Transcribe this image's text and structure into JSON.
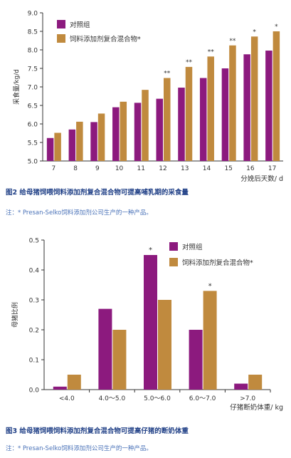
{
  "chart_data": [
    {
      "type": "bar",
      "title": "图2 给母猪饲喂饲料添加剂复合混合物可提高哺乳期的采食量",
      "note": "注：* Presan-Selko饲料添加剂公司生产的一种产品。",
      "ylabel": "采食量/kg/d",
      "xlabel": "分娩后天数/ d",
      "ylim": [
        5.0,
        9.0
      ],
      "yticks": [
        "5.0",
        "5.5",
        "6.0",
        "6.5",
        "7.0",
        "7.5",
        "8.0",
        "8.5",
        "9.0"
      ],
      "categories": [
        "7",
        "8",
        "9",
        "10",
        "11",
        "12",
        "13",
        "14",
        "15",
        "16",
        "17"
      ],
      "series": [
        {
          "name": "对照组",
          "color": "#8c1a7e",
          "values": [
            5.62,
            5.85,
            6.05,
            6.45,
            6.57,
            6.68,
            6.98,
            7.24,
            7.5,
            7.88,
            7.98
          ]
        },
        {
          "name": "饲料添加剂复合混合物*",
          "color": "#c08a3e",
          "values": [
            5.76,
            6.06,
            6.28,
            6.6,
            6.92,
            7.24,
            7.54,
            7.82,
            8.12,
            8.36,
            8.5
          ]
        }
      ],
      "annotations": [
        "",
        "",
        "",
        "",
        "",
        "**",
        "**",
        "**",
        "**",
        "*",
        "*"
      ],
      "legend_position": "top-left",
      "grid": false
    },
    {
      "type": "bar",
      "title": "图3 给母猪饲喂饲料添加剂复合混合物可提高仔猪的断奶体重",
      "note": "注：* Presan-Selko饲料添加剂公司生产的一种产品。",
      "ylabel": "母猪比例",
      "xlabel": "仔猪断奶体重/ kg",
      "ylim": [
        0,
        0.5
      ],
      "yticks": [
        "0.0",
        "0.1",
        "0.2",
        "0.3",
        "0.4",
        "0.5"
      ],
      "categories": [
        "<4.0",
        "4.0～5.0",
        "5.0～6.0",
        "6.0～7.0",
        ">7.0"
      ],
      "series": [
        {
          "name": "对照组",
          "color": "#8c1a7e",
          "values": [
            0.01,
            0.27,
            0.45,
            0.2,
            0.02
          ]
        },
        {
          "name": "饲料添加剂复合混合物*",
          "color": "#c08a3e",
          "values": [
            0.05,
            0.2,
            0.3,
            0.33,
            0.05
          ]
        }
      ],
      "annotations": [
        {
          "category": "5.0～6.0",
          "series": 0,
          "text": "*"
        },
        {
          "category": "6.0～7.0",
          "series": 1,
          "text": "*"
        }
      ],
      "legend_position": "top-right",
      "grid": false
    }
  ]
}
